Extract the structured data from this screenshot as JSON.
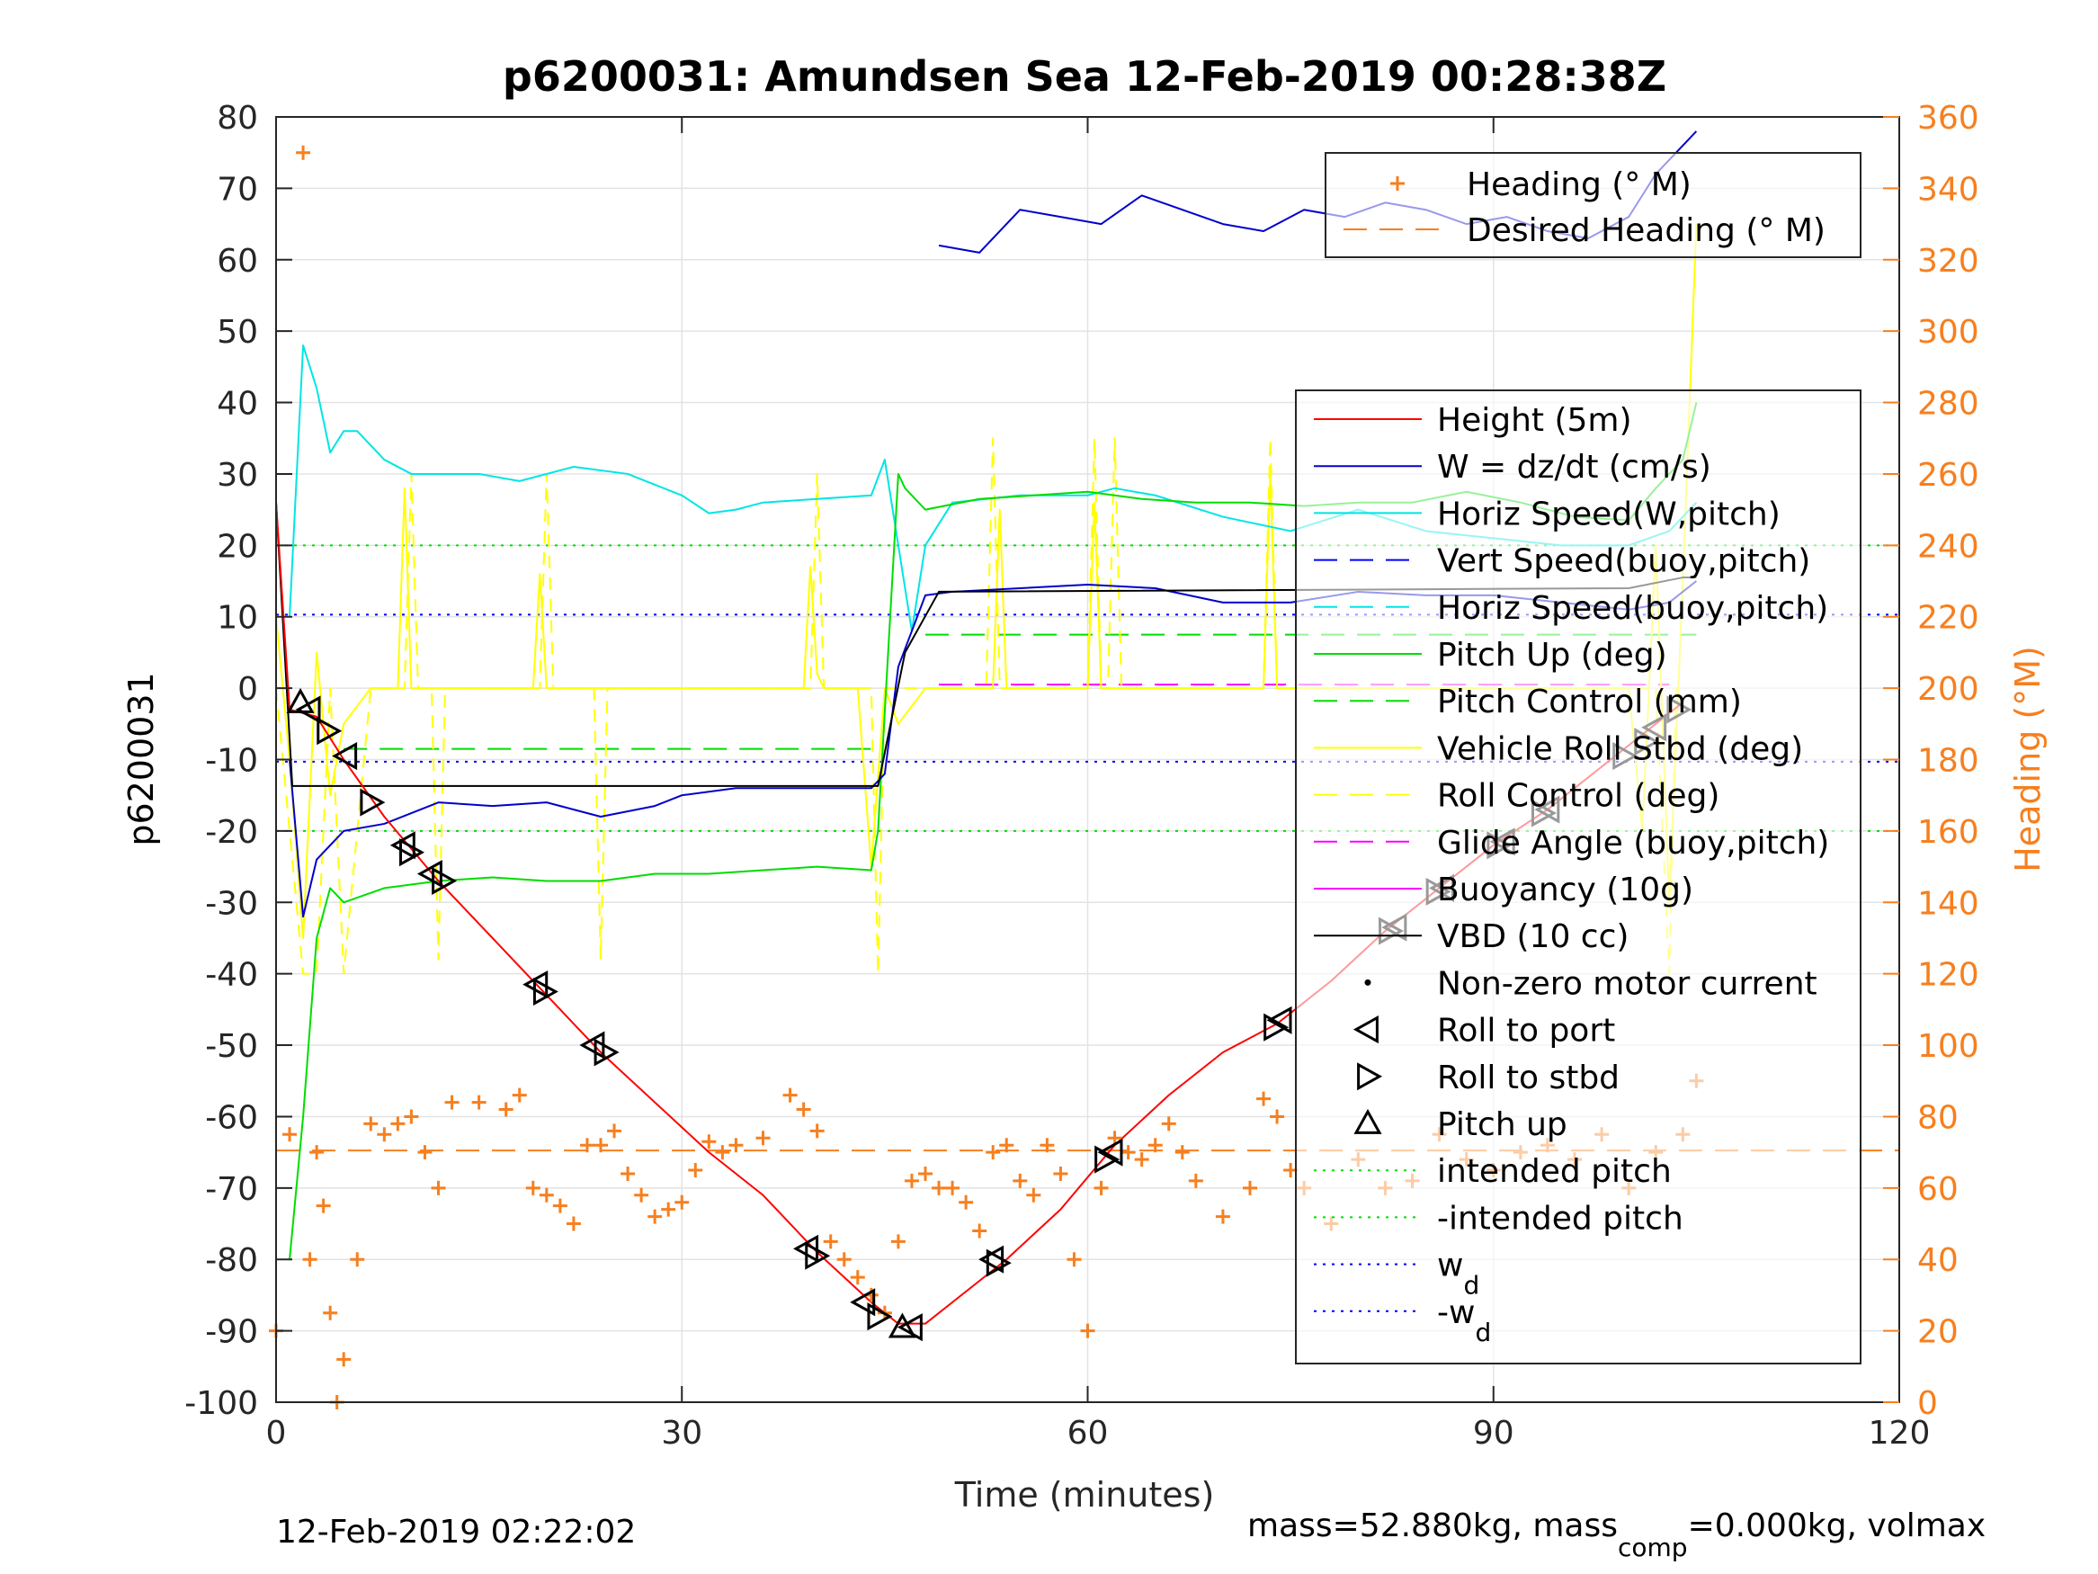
{
  "chart_data": {
    "type": "line",
    "title": "p6200031: Amundsen Sea 12-Feb-2019 00:28:38Z",
    "xlabel": "Time (minutes)",
    "ylabel_left": "p6200031",
    "ylabel_right": "Heading (°M)",
    "xlim": [
      0,
      120
    ],
    "ylim_left": [
      -100,
      80
    ],
    "ylim_right": [
      0,
      360
    ],
    "x_ticks": [
      0,
      30,
      60,
      90,
      120
    ],
    "y_ticks_left": [
      80,
      70,
      60,
      50,
      40,
      30,
      20,
      10,
      0,
      -10,
      -20,
      -30,
      -40,
      -50,
      -60,
      -70,
      -80,
      -90,
      -100
    ],
    "y_ticks_right": [
      360,
      340,
      320,
      300,
      280,
      260,
      240,
      220,
      200,
      180,
      160,
      140,
      120,
      100,
      80,
      60,
      40,
      20,
      0
    ],
    "grid": true,
    "footer_left": "12-Feb-2019 02:22:02",
    "footer_right": {
      "pre": "mass=52.880kg, mass",
      "sub": "comp",
      "post": "=0.000kg, volmax"
    },
    "legend_heading": [
      {
        "label": "Heading (° M)",
        "marker": "plus",
        "color": "#f77f1e"
      },
      {
        "label": "Desired Heading (° M)",
        "style": "dash",
        "color": "#f77f1e"
      }
    ],
    "legend_main": [
      {
        "label": "Height (5m)",
        "style": "solid",
        "color": "#ff0000"
      },
      {
        "label": "W = dz/dt (cm/s)",
        "style": "solid",
        "color": "#0000cc"
      },
      {
        "label": "Horiz Speed(W,pitch)",
        "style": "solid",
        "color": "#00e5e5"
      },
      {
        "label": "Vert Speed(buoy,pitch)",
        "style": "dash",
        "color": "#0000ff"
      },
      {
        "label": "Horiz Speed(buoy,pitch)",
        "style": "dash",
        "color": "#00e5e5"
      },
      {
        "label": "Pitch Up (deg)",
        "style": "solid",
        "color": "#00dd00"
      },
      {
        "label": "Pitch Control (mm)",
        "style": "dash",
        "color": "#00dd00"
      },
      {
        "label": "Vehicle Roll Stbd (deg)",
        "style": "solid",
        "color": "#ffff00"
      },
      {
        "label": "Roll Control (deg)",
        "style": "dash",
        "color": "#ffff00"
      },
      {
        "label": "Glide Angle (buoy,pitch)",
        "style": "dash",
        "color": "#ff00ff"
      },
      {
        "label": "Buoyancy (10g)",
        "style": "solid",
        "color": "#ff00ff"
      },
      {
        "label": "VBD (10 cc)",
        "style": "solid",
        "color": "#000000"
      },
      {
        "label": "Non-zero motor current",
        "marker": "dot",
        "color": "#000000"
      },
      {
        "label": "Roll to port",
        "marker": "tri-left",
        "color": "#000000"
      },
      {
        "label": "Roll to stbd",
        "marker": "tri-right",
        "color": "#000000"
      },
      {
        "label": "Pitch up",
        "marker": "tri-up",
        "color": "#000000"
      },
      {
        "label": "intended pitch",
        "style": "dot",
        "color": "#00dd00"
      },
      {
        "label": "-intended pitch",
        "style": "dot",
        "color": "#00dd00"
      },
      {
        "label": "w",
        "sub": "d",
        "style": "dot",
        "color": "#0000ff"
      },
      {
        "label": "-w",
        "sub": "d",
        "style": "dot",
        "color": "#0000ff"
      }
    ],
    "ref_lines": [
      {
        "y": 20,
        "color": "#00dd00"
      },
      {
        "y": -20,
        "color": "#00dd00"
      },
      {
        "y": 10.3,
        "color": "#0000ff"
      },
      {
        "y": -10.3,
        "color": "#0000ff"
      }
    ],
    "height": {
      "x": [
        0,
        1,
        3,
        5,
        8,
        12,
        16,
        20,
        24,
        28,
        32,
        36,
        40,
        44,
        46,
        48,
        50,
        54,
        58,
        62,
        66,
        70,
        74,
        78,
        82,
        86,
        90,
        94,
        98,
        100,
        102,
        104
      ],
      "y": [
        26,
        -3,
        -4,
        -10,
        -18,
        -27,
        -35,
        -43,
        -51,
        -58,
        -65,
        -71,
        -79,
        -86,
        -89,
        -89,
        -86,
        -80,
        -73,
        -64,
        -57,
        -51,
        -47,
        -41,
        -34,
        -28,
        -22,
        -17,
        -11,
        -8,
        -5,
        -2
      ]
    },
    "vbd": {
      "x": [
        0,
        1.2,
        44.5,
        46.5,
        49,
        100,
        104,
        105
      ],
      "y": [
        26,
        -13.7,
        -13.7,
        5,
        13.5,
        14,
        15.5,
        15.5
      ]
    },
    "w": {
      "x": [
        1,
        2,
        3,
        5,
        8,
        12,
        16,
        20,
        24,
        28,
        30,
        34,
        38,
        42,
        44,
        45,
        46,
        48,
        50,
        55,
        60,
        65,
        70,
        75,
        80,
        85,
        90,
        95,
        100,
        103,
        105
      ],
      "y": [
        -10,
        -32,
        -24,
        -20,
        -19,
        -16,
        -16.5,
        -16,
        -18,
        -16.5,
        -15,
        -14,
        -14,
        -14,
        -14,
        -12,
        3,
        13,
        13.5,
        14,
        14.5,
        14,
        12,
        12,
        13.5,
        13,
        13,
        12,
        11,
        12,
        15
      ]
    },
    "w_upper": {
      "x": [
        49,
        52,
        55,
        58,
        61,
        64,
        67,
        70,
        73,
        76,
        79,
        82,
        85,
        88,
        91,
        94,
        97,
        100,
        102,
        104,
        105
      ],
      "y": [
        62,
        61,
        67,
        66,
        65,
        69,
        67,
        65,
        64,
        67,
        66,
        68,
        67,
        65,
        66,
        64,
        63,
        66,
        72,
        76,
        78
      ]
    },
    "horiz_speed": {
      "x": [
        1,
        2,
        3,
        4,
        5,
        6,
        8,
        10,
        12,
        15,
        18,
        22,
        26,
        30,
        32,
        34,
        36,
        40,
        44,
        45,
        46,
        47,
        48,
        50,
        55,
        60,
        62,
        65,
        70,
        75,
        80,
        85,
        90,
        95,
        100,
        103,
        105
      ],
      "y": [
        10,
        48,
        42,
        33,
        36,
        36,
        32,
        30,
        30,
        30,
        29,
        31,
        30,
        27,
        24.5,
        25,
        26,
        26.5,
        27,
        32,
        20,
        8,
        20,
        26,
        27,
        27,
        28,
        27,
        24,
        22,
        25,
        22,
        21,
        20,
        20,
        22,
        26
      ]
    },
    "pitch": {
      "x": [
        1,
        2,
        3,
        4,
        5,
        8,
        12,
        16,
        20,
        24,
        28,
        32,
        36,
        40,
        44,
        44.5,
        46,
        46.5,
        48,
        52,
        56,
        60,
        64,
        68,
        72,
        76,
        80,
        84,
        88,
        92,
        96,
        100,
        102,
        104,
        105
      ],
      "y": [
        -80,
        -60,
        -35,
        -28,
        -30,
        -28,
        -27,
        -26.5,
        -27,
        -27,
        -26,
        -26,
        -25.5,
        -25,
        -25.5,
        -20,
        30,
        28,
        25,
        26.5,
        27,
        27.5,
        26.5,
        26,
        26,
        25.5,
        26,
        26,
        27.5,
        26,
        24,
        23.5,
        28,
        32,
        40
      ]
    },
    "pitch_control": {
      "segments": [
        {
          "x": [
            5,
            44
          ],
          "y": -8.5
        },
        {
          "x": [
            48,
            105
          ],
          "y": 7.5
        }
      ]
    },
    "roll": {
      "x": [
        0,
        1,
        2,
        3,
        4,
        5,
        7,
        9,
        9.5,
        10,
        10.5,
        12,
        19,
        19.5,
        20,
        20.5,
        22,
        39,
        39.5,
        40,
        40.5,
        43,
        44,
        45,
        46,
        48,
        52,
        53,
        53.5,
        54,
        55,
        60,
        60.5,
        61,
        61.5,
        62,
        70,
        73,
        73.5,
        74,
        74.5,
        78,
        80,
        85,
        88,
        90,
        95,
        100,
        101,
        102,
        103,
        104,
        105
      ],
      "y": [
        10,
        -10,
        -35,
        5,
        -15,
        -5,
        0,
        0,
        28,
        0,
        0,
        0,
        0,
        16,
        0,
        0,
        0,
        0,
        17,
        2,
        0,
        0,
        -25,
        0,
        -5,
        0,
        0,
        0,
        25,
        0,
        0,
        0,
        26,
        0,
        0,
        0,
        0,
        0,
        30,
        0,
        0,
        0,
        0,
        0,
        0,
        0,
        0,
        0,
        -20,
        20,
        -30,
        15,
        65
      ]
    },
    "roll_control": {
      "x": [
        0,
        2,
        3,
        4,
        5,
        7,
        9.5,
        10,
        10.5,
        11.5,
        12,
        12.5,
        19.5,
        20,
        20.5,
        23.5,
        24,
        24.5,
        39.5,
        40,
        40.5,
        44,
        44.5,
        45,
        45.5,
        52.5,
        53,
        53.5,
        60,
        60.5,
        61,
        61.5,
        62,
        62.5,
        73,
        73.5,
        74,
        74.5,
        102,
        103,
        103.5,
        104
      ],
      "y": [
        0,
        -40,
        -40,
        0,
        -40,
        0,
        0,
        30,
        0,
        0,
        -38,
        0,
        0,
        30,
        0,
        0,
        -38,
        0,
        0,
        30,
        0,
        0,
        -40,
        0,
        0,
        0,
        35,
        0,
        0,
        35,
        0,
        0,
        35,
        0,
        0,
        35,
        0,
        0,
        0,
        -40,
        0,
        0
      ]
    },
    "glide_angle": {
      "x": [
        49,
        103
      ],
      "y": 0.5
    },
    "heading": {
      "x": [
        0,
        1,
        2,
        2.5,
        3,
        3.5,
        4,
        4.5,
        5,
        6,
        7,
        8,
        9,
        10,
        11,
        12,
        13,
        15,
        17,
        18,
        19,
        20,
        21,
        22,
        23,
        24,
        25,
        26,
        27,
        28,
        29,
        30,
        31,
        32,
        33,
        34,
        36,
        38,
        39,
        40,
        41,
        42,
        43,
        44,
        45,
        46,
        47,
        48,
        49,
        50,
        51,
        52,
        53,
        54,
        55,
        56,
        57,
        58,
        59,
        60,
        61,
        62,
        63,
        64,
        65,
        66,
        67,
        68,
        70,
        72,
        73,
        74,
        75,
        76,
        78,
        80,
        82,
        84,
        86,
        88,
        90,
        92,
        94,
        96,
        98,
        100,
        102,
        104,
        105
      ],
      "y": [
        20,
        75,
        350,
        40,
        70,
        55,
        25,
        0,
        12,
        40,
        78,
        75,
        78,
        80,
        70,
        60,
        84,
        84,
        82,
        86,
        60,
        58,
        55,
        50,
        72,
        72,
        76,
        64,
        58,
        52,
        54,
        56,
        65,
        73,
        70,
        72,
        74,
        86,
        82,
        76,
        45,
        40,
        35,
        30,
        25,
        45,
        62,
        64,
        60,
        60,
        56,
        48,
        70,
        72,
        62,
        58,
        72,
        64,
        40,
        20,
        60,
        74,
        70,
        68,
        72,
        78,
        70,
        62,
        52,
        60,
        85,
        80,
        65,
        60,
        50,
        68,
        60,
        62,
        75,
        68,
        65,
        70,
        72,
        68,
        75,
        60,
        70,
        75,
        90
      ]
    },
    "desired_heading": 70.5,
    "markers": [
      {
        "type": "tri-up",
        "x": 1.8,
        "y": -2
      },
      {
        "type": "tri-left",
        "x": 2.5,
        "y": -3
      },
      {
        "type": "tri-right",
        "x": 3.8,
        "y": -6
      },
      {
        "type": "tri-left",
        "x": 5.2,
        "y": -9.5
      },
      {
        "type": "tri-right",
        "x": 7.0,
        "y": -16
      },
      {
        "type": "tri-left",
        "x": 9.5,
        "y": -22
      },
      {
        "type": "tri-right",
        "x": 9.9,
        "y": -23
      },
      {
        "type": "tri-left",
        "x": 11.5,
        "y": -26
      },
      {
        "type": "tri-right",
        "x": 12.3,
        "y": -27
      },
      {
        "type": "tri-left",
        "x": 19.3,
        "y": -41.5
      },
      {
        "type": "tri-right",
        "x": 19.8,
        "y": -42.5
      },
      {
        "type": "tri-left",
        "x": 23.5,
        "y": -50
      },
      {
        "type": "tri-right",
        "x": 24.3,
        "y": -51
      },
      {
        "type": "tri-left",
        "x": 39.3,
        "y": -78.5
      },
      {
        "type": "tri-right",
        "x": 39.9,
        "y": -79.5
      },
      {
        "type": "tri-left",
        "x": 43.5,
        "y": -86
      },
      {
        "type": "tri-right",
        "x": 44.5,
        "y": -88
      },
      {
        "type": "tri-up",
        "x": 46.3,
        "y": -89.5
      },
      {
        "type": "tri-left",
        "x": 47.0,
        "y": -89.5
      },
      {
        "type": "tri-right",
        "x": 53.3,
        "y": -80.5
      },
      {
        "type": "tri-left",
        "x": 53.0,
        "y": -80
      },
      {
        "type": "tri-right",
        "x": 61.3,
        "y": -66
      },
      {
        "type": "tri-left",
        "x": 61.8,
        "y": -65
      },
      {
        "type": "tri-right",
        "x": 73.8,
        "y": -47.5
      },
      {
        "type": "tri-left",
        "x": 74.3,
        "y": -46.5
      },
      {
        "type": "tri-right",
        "x": 82.3,
        "y": -34
      },
      {
        "type": "tri-left",
        "x": 82.8,
        "y": -33.5
      },
      {
        "type": "tri-right",
        "x": 85.8,
        "y": -28.5
      },
      {
        "type": "tri-left",
        "x": 86.3,
        "y": -28
      },
      {
        "type": "tri-right",
        "x": 90.3,
        "y": -22
      },
      {
        "type": "tri-left",
        "x": 90.8,
        "y": -21.5
      },
      {
        "type": "tri-right",
        "x": 93.6,
        "y": -17.5
      },
      {
        "type": "tri-left",
        "x": 94.1,
        "y": -17
      },
      {
        "type": "tri-right",
        "x": 99.6,
        "y": -9.5
      },
      {
        "type": "tri-right",
        "x": 101.2,
        "y": -7.5
      },
      {
        "type": "tri-left",
        "x": 102.0,
        "y": -5.5
      },
      {
        "type": "tri-right",
        "x": 103.6,
        "y": -3
      }
    ]
  }
}
